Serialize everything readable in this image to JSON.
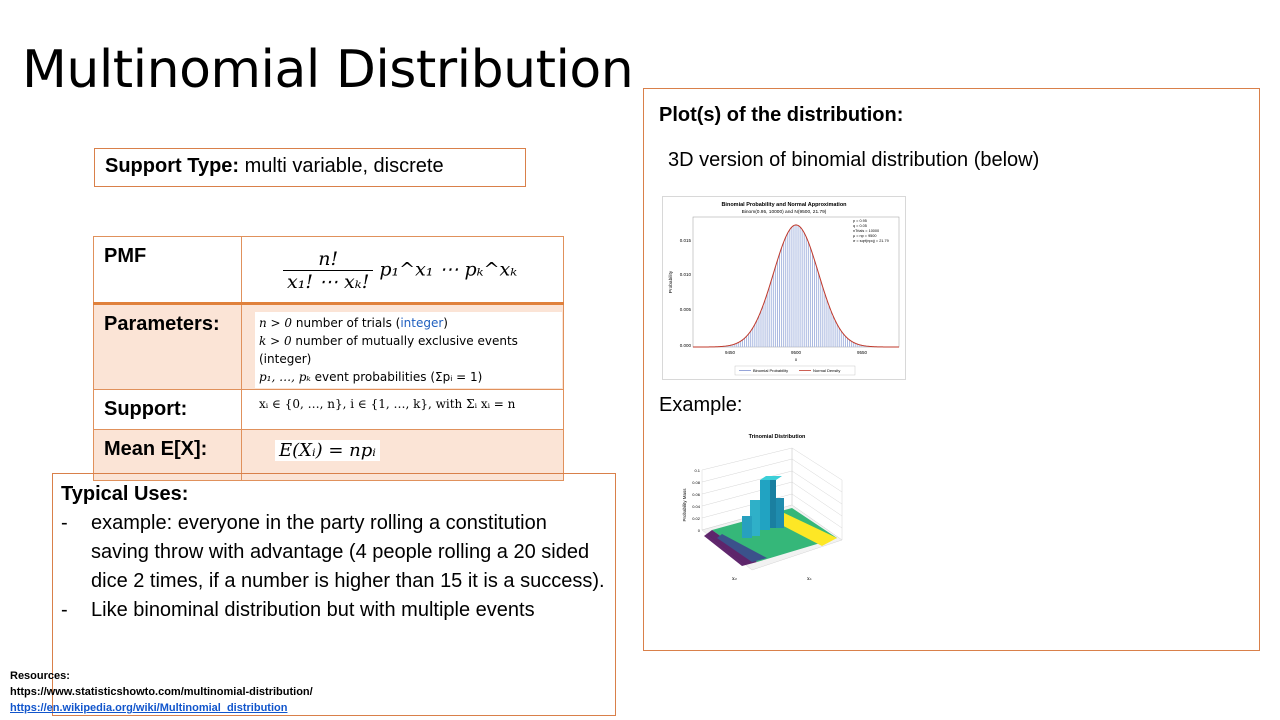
{
  "slide": {
    "title": "Multinomial Distribution",
    "support_type": {
      "label": "Support Type:",
      "value": "multi variable, discrete"
    },
    "table": {
      "pmf_label": "PMF",
      "pmf_formula_num": "n!",
      "pmf_formula_den": "x₁! ⋯ xₖ!",
      "pmf_formula_rest": "p₁^x₁ ⋯ pₖ^xₖ",
      "parameters_label": "Parameters:",
      "param_lines": [
        {
          "math": "n > 0",
          "text": "number of trials (",
          "link": "integer",
          "tail": ")"
        },
        {
          "math": "k > 0",
          "text": "number of mutually exclusive events (integer)"
        },
        {
          "math": "p₁, …, pₖ",
          "text": "event probabilities (Σpᵢ = 1)"
        }
      ],
      "support_label": "Support:",
      "support_formula": "xᵢ ∈ {0, …, n},  i ∈ {1, …, k}, with Σᵢ xᵢ = n",
      "mean_label": "Mean E[X]:",
      "mean_formula": "E(Xᵢ) = npᵢ"
    },
    "typical_uses": {
      "heading": "Typical Uses:",
      "items": [
        "example: everyone in the party rolling a constitution saving throw with advantage (4 people rolling a 20 sided dice 2 times, if a number is higher than 15 it is a success).",
        "Like binominal distribution but with multiple events"
      ]
    },
    "resources": {
      "heading": "Resources:",
      "link1": "https://www.statisticshowto.com/multinomial-distribution/",
      "link2": "https://en.wikipedia.org/wiki/Multinomial_distribution"
    },
    "plots": {
      "heading": "Plot(s) of the distribution:",
      "subheading": "3D version of binomial distribution (below)",
      "example_label": "Example:",
      "binomial_chart": {
        "title": "Binomial Probability and Normal Approximation",
        "subtitle": "Binom(0.95, 10000) and N(9500, 21.79)",
        "ylabel": "Probability",
        "xlabel": "x",
        "yticks": [
          "0.015",
          "0.010",
          "0.005",
          "0.000"
        ],
        "xticks": [
          "9450",
          "9500",
          "9550"
        ],
        "stats": [
          "p = 0.95",
          "q = 0.05",
          "nTrials = 10000",
          "μ = np = 9500",
          "σ = sqrt(npq) = 21.79"
        ],
        "legend": [
          "Binomial Probability",
          "Normal Density"
        ],
        "mean": 9500,
        "sd": 21.79,
        "colors": {
          "bars": "#a9b8e0",
          "curve": "#c0392b"
        }
      },
      "trinomial_chart": {
        "title": "Trinomial Distribution",
        "zlabel": "Probability Mass",
        "zticks": [
          "0.1",
          "0.08",
          "0.06",
          "0.04",
          "0.02",
          "0"
        ],
        "xlabel": "x₁",
        "ylabel": "x₂"
      }
    }
  }
}
